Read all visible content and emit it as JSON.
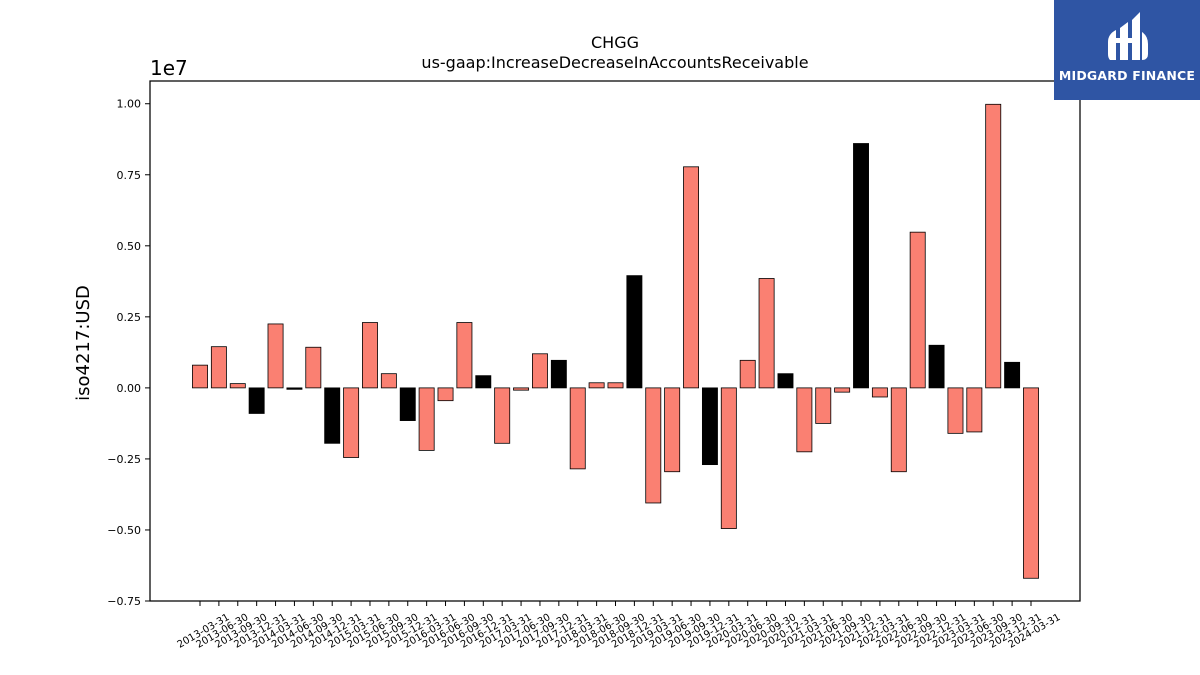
{
  "chart_data": {
    "type": "bar",
    "title": "CHGG",
    "subtitle": "us-gaap:IncreaseDecreaseInAccountsReceivable",
    "ylabel": "iso4217:USD",
    "xlabel": "",
    "offset_label": "1e7",
    "scale": 10000000,
    "ylim": [
      -0.75,
      1.08
    ],
    "yticks": [
      -0.75,
      -0.5,
      -0.25,
      0.0,
      0.25,
      0.5,
      0.75,
      1.0
    ],
    "ytick_labels": [
      "−0.75",
      "−0.50",
      "−0.25",
      "0.00",
      "0.25",
      "0.50",
      "0.75",
      "1.00"
    ],
    "grid": false,
    "colors": {
      "salmon": "#fa8072",
      "black": "#000000",
      "edge": "#000000"
    },
    "categories": [
      "2013-03-31",
      "2013-06-30",
      "2013-09-30",
      "2013-12-31",
      "2014-03-31",
      "2014-06-30",
      "2014-09-30",
      "2014-12-31",
      "2015-03-31",
      "2015-06-30",
      "2015-09-30",
      "2015-12-31",
      "2016-03-31",
      "2016-06-30",
      "2016-09-30",
      "2016-12-31",
      "2017-03-31",
      "2017-06-30",
      "2017-09-30",
      "2017-12-31",
      "2018-03-31",
      "2018-06-30",
      "2018-09-30",
      "2018-12-31",
      "2019-03-31",
      "2019-06-30",
      "2019-09-30",
      "2019-12-31",
      "2020-03-31",
      "2020-06-30",
      "2020-09-30",
      "2020-12-31",
      "2021-03-31",
      "2021-06-30",
      "2021-09-30",
      "2021-12-31",
      "2022-03-31",
      "2022-06-30",
      "2022-09-30",
      "2022-12-31",
      "2023-03-31",
      "2023-06-30",
      "2023-09-30",
      "2023-12-31",
      "2024-03-31"
    ],
    "values": [
      0.08,
      0.145,
      0.015,
      -0.09,
      0.225,
      -0.005,
      0.143,
      -0.195,
      -0.245,
      0.23,
      0.05,
      -0.115,
      -0.22,
      -0.045,
      0.23,
      0.043,
      -0.195,
      -0.008,
      0.12,
      0.097,
      -0.285,
      0.018,
      0.018,
      0.395,
      -0.405,
      -0.295,
      0.778,
      -0.27,
      -0.495,
      0.097,
      0.385,
      0.05,
      -0.225,
      -0.125,
      -0.015,
      0.86,
      -0.032,
      -0.295,
      0.548,
      0.15,
      -0.16,
      -0.155,
      0.998,
      0.09,
      -0.67
    ],
    "bar_colors": [
      "salmon",
      "salmon",
      "salmon",
      "black",
      "salmon",
      "black",
      "salmon",
      "black",
      "salmon",
      "salmon",
      "salmon",
      "black",
      "salmon",
      "salmon",
      "salmon",
      "black",
      "salmon",
      "salmon",
      "salmon",
      "black",
      "salmon",
      "salmon",
      "salmon",
      "black",
      "salmon",
      "salmon",
      "salmon",
      "black",
      "salmon",
      "salmon",
      "salmon",
      "black",
      "salmon",
      "salmon",
      "salmon",
      "black",
      "salmon",
      "salmon",
      "salmon",
      "black",
      "salmon",
      "salmon",
      "salmon",
      "black",
      "salmon"
    ]
  },
  "logo": {
    "text": "MIDGARD FINANCE",
    "bg": "#2f55a4"
  }
}
